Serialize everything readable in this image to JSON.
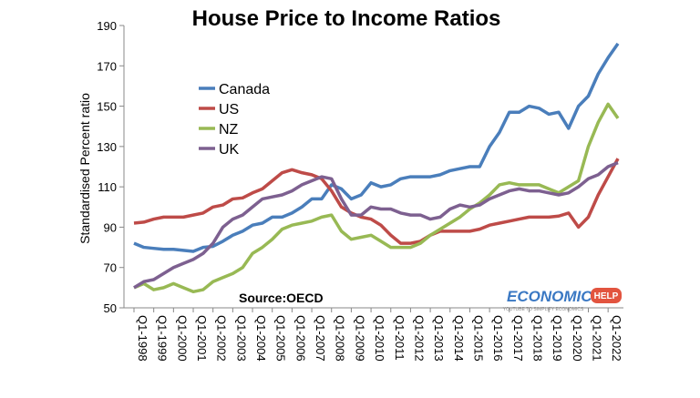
{
  "chart_data": {
    "type": "line",
    "title": "House Price to Income Ratios",
    "y_label": "Standardised Percent ratio",
    "source": "Source:OECD",
    "logo": {
      "main": "ECONOMICS",
      "badge": "HELP",
      "tagline": "YOUTUBE TO SIMPLIFY ECONOMICS"
    },
    "categories": [
      "Q1-1998",
      null,
      "Q1-1999",
      null,
      "Q1-2000",
      null,
      "Q1-2001",
      null,
      "Q1-2002",
      null,
      "Q1-2003",
      null,
      "Q1-2004",
      null,
      "Q1-2005",
      null,
      "Q1-2006",
      null,
      "Q1-2007",
      null,
      "Q1-2008",
      null,
      "Q1-2009",
      null,
      "Q1-2010",
      null,
      "Q1-2011",
      null,
      "Q1-2012",
      null,
      "Q1-2013",
      null,
      "Q1-2014",
      null,
      "Q1-2015",
      null,
      "Q1-2016",
      null,
      "Q1-2017",
      null,
      "Q1-2018",
      null,
      "Q1-2019",
      null,
      "Q1-2020",
      null,
      "Q1-2021",
      null,
      "Q1-2022",
      null
    ],
    "series": [
      {
        "name": "Canada",
        "color": "#4a7ebb",
        "values": [
          82,
          80,
          79.5,
          79,
          79,
          78.5,
          78,
          80,
          80.5,
          83,
          86,
          88,
          91,
          92,
          95,
          95,
          97,
          100,
          104,
          104,
          111,
          109,
          104,
          106,
          112,
          110,
          111,
          114,
          115,
          115,
          115,
          116,
          118,
          119,
          120,
          120,
          130,
          137,
          147,
          147,
          150,
          149,
          146,
          147,
          139,
          150,
          155,
          166,
          174,
          181
        ]
      },
      {
        "name": "US",
        "color": "#be4b48",
        "values": [
          92,
          92.5,
          94,
          95,
          95,
          95,
          96,
          97,
          100,
          101,
          104,
          104.5,
          107,
          109,
          113,
          117,
          118.5,
          117,
          116,
          114,
          108,
          100,
          97,
          95,
          94,
          91,
          86,
          82,
          82,
          83,
          86,
          88,
          88,
          88,
          88,
          89,
          91,
          92,
          93,
          94,
          95,
          95,
          95,
          95.5,
          97,
          90,
          95,
          106,
          115,
          124
        ]
      },
      {
        "name": "NZ",
        "color": "#98b954",
        "values": [
          60,
          62,
          59,
          60,
          62,
          60,
          58,
          59,
          63,
          65,
          67,
          70,
          77,
          80,
          84,
          89,
          91,
          92,
          93,
          95,
          96,
          88,
          84,
          85,
          86,
          83,
          80,
          80,
          80,
          82,
          86,
          89,
          92,
          95,
          99,
          102,
          106,
          111,
          112,
          111,
          111,
          111,
          109,
          107,
          110,
          113,
          130,
          142,
          151,
          144
        ]
      },
      {
        "name": "UK",
        "color": "#7d6090",
        "values": [
          60,
          63,
          64,
          67,
          70,
          72,
          74,
          77,
          82,
          90,
          94,
          96,
          100,
          104,
          105,
          106,
          108,
          111,
          113,
          115,
          114,
          104,
          96,
          96,
          100,
          99,
          99,
          97,
          96,
          96,
          94,
          95,
          99,
          101,
          100,
          101,
          104,
          106,
          108,
          109,
          108,
          108,
          107,
          106,
          107,
          110,
          114,
          116,
          120,
          122
        ]
      }
    ],
    "ylim": [
      50,
      190
    ],
    "yticks": [
      50,
      70,
      90,
      110,
      130,
      150,
      170,
      190
    ],
    "legend": "upper left"
  }
}
